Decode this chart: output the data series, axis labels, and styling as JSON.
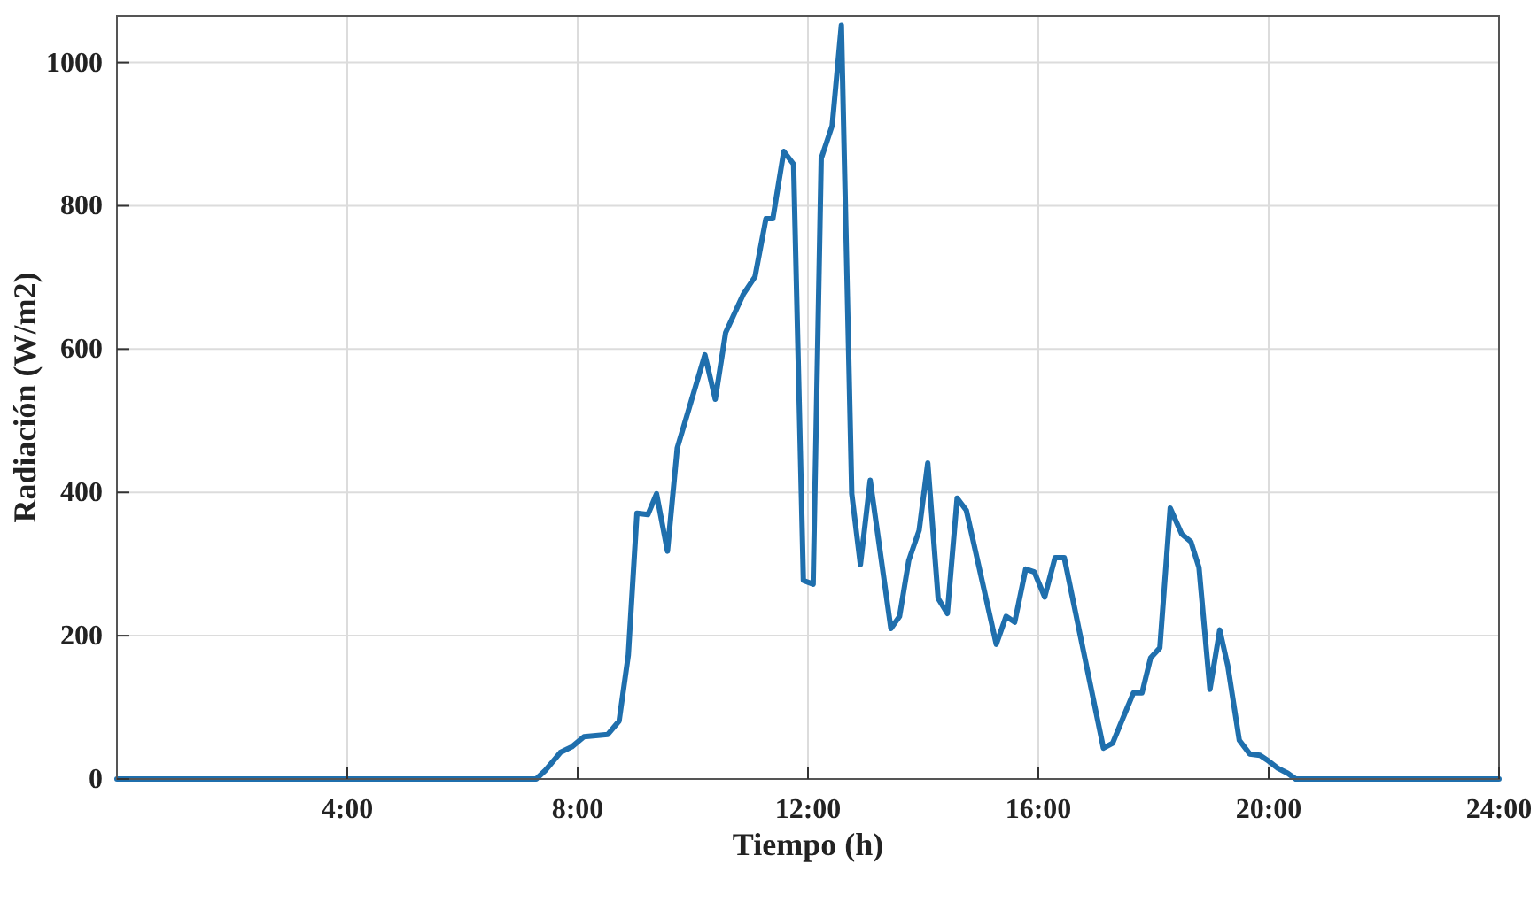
{
  "chart_data": {
    "type": "line",
    "xlabel": "Tiempo (h)",
    "ylabel": "Radiación (W/m2)",
    "xlim": [
      0,
      24
    ],
    "ylim": [
      0,
      1065
    ],
    "xticks": [
      {
        "value": 4,
        "label": "4:00"
      },
      {
        "value": 8,
        "label": "8:00"
      },
      {
        "value": 12,
        "label": "12:00"
      },
      {
        "value": 16,
        "label": "16:00"
      },
      {
        "value": 20,
        "label": "20:00"
      },
      {
        "value": 24,
        "label": "24:00"
      }
    ],
    "yticks": [
      0,
      200,
      400,
      600,
      800,
      1000
    ],
    "grid": true,
    "marker": "none",
    "line_style": "solid",
    "series": [
      {
        "color": "#1f6fad",
        "x": [
          0,
          7.28,
          7.44,
          7.7,
          7.9,
          8.11,
          8.52,
          8.72,
          8.88,
          9.03,
          9.22,
          9.37,
          9.56,
          9.73,
          9.93,
          10.21,
          10.39,
          10.57,
          10.88,
          11.08,
          11.27,
          11.39,
          11.58,
          11.75,
          11.92,
          12.09,
          12.23,
          12.42,
          12.58,
          12.76,
          12.91,
          13.08,
          13.44,
          13.59,
          13.75,
          13.93,
          14.08,
          14.26,
          14.42,
          14.59,
          14.75,
          15.27,
          15.44,
          15.59,
          15.78,
          15.93,
          16.11,
          16.29,
          16.45,
          17.13,
          17.29,
          17.65,
          17.8,
          17.95,
          18.11,
          18.29,
          18.49,
          18.65,
          18.79,
          18.98,
          19.15,
          19.29,
          19.49,
          19.67,
          19.85,
          20,
          20.16,
          20.33,
          20.47,
          24
        ],
        "values": [
          0,
          0,
          12,
          37,
          45,
          59,
          62,
          81,
          173,
          371,
          369,
          398,
          318,
          462,
          516,
          592,
          530,
          623,
          677,
          701,
          782,
          782,
          876,
          858,
          277,
          272,
          866,
          912,
          1052,
          398,
          299,
          417,
          210,
          227,
          305,
          347,
          441,
          252,
          231,
          392,
          375,
          188,
          227,
          219,
          293,
          289,
          254,
          309,
          309,
          43,
          50,
          120,
          120,
          169,
          183,
          378,
          342,
          331,
          295,
          125,
          208,
          158,
          54,
          35,
          33,
          25,
          15,
          8,
          0,
          0
        ]
      }
    ]
  }
}
